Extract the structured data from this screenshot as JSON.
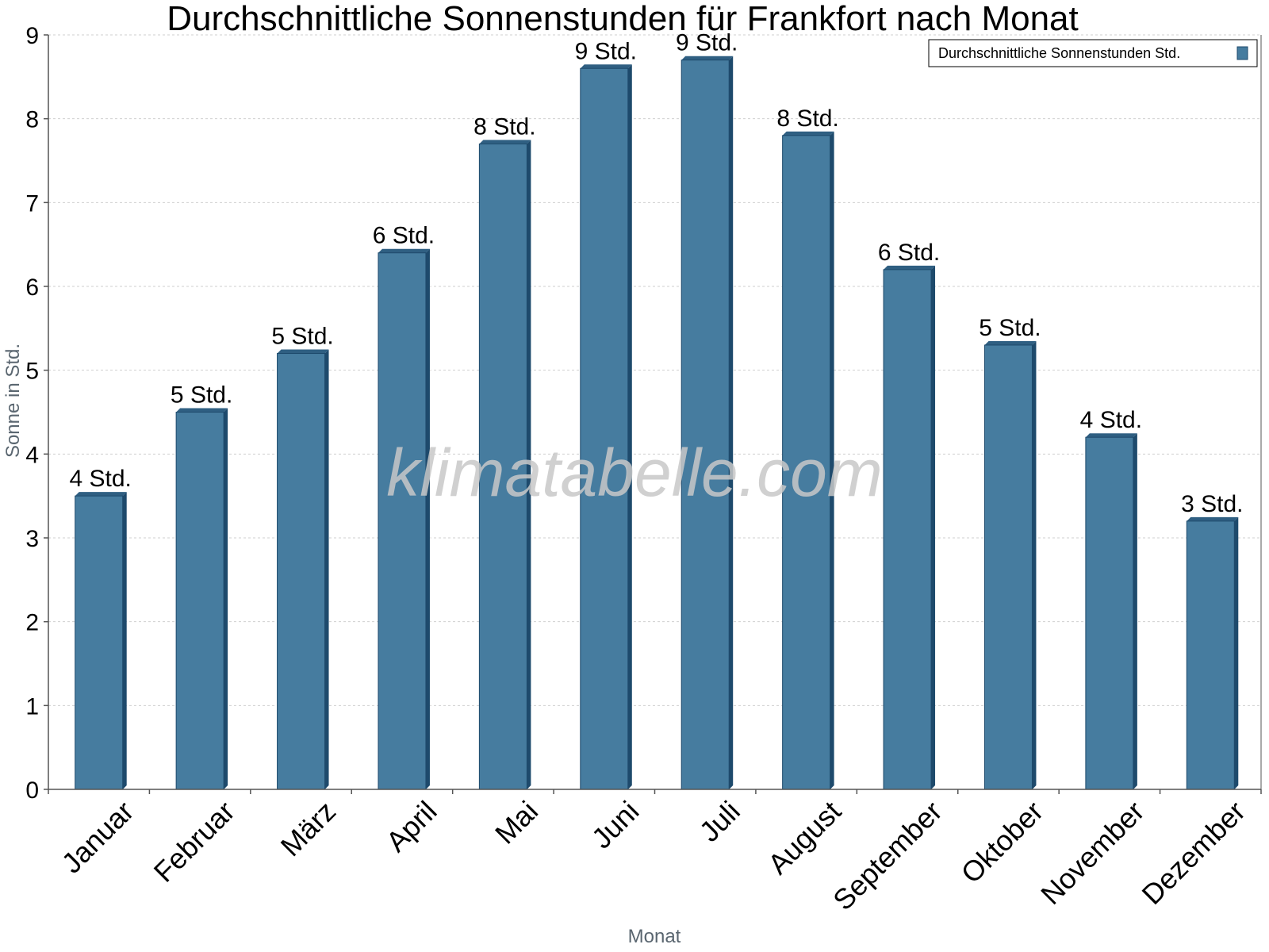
{
  "chart_data": {
    "type": "bar",
    "title": "Durchschnittliche Sonnenstunden für Frankfort nach Monat",
    "xlabel": "Monat",
    "ylabel": "Sonne in Std.",
    "categories": [
      "Januar",
      "Februar",
      "März",
      "April",
      "Mai",
      "Juni",
      "Juli",
      "August",
      "September",
      "Oktober",
      "November",
      "Dezember"
    ],
    "series": [
      {
        "name": "Durchschnittliche Sonnenstunden Std.",
        "values": [
          3.5,
          4.5,
          5.2,
          6.4,
          7.7,
          8.6,
          8.7,
          7.8,
          6.2,
          5.3,
          4.2,
          3.2
        ],
        "data_labels": [
          "4 Std.",
          "5 Std.",
          "5 Std.",
          "6 Std.",
          "8 Std.",
          "9 Std.",
          "9 Std.",
          "8 Std.",
          "6 Std.",
          "5 Std.",
          "4 Std.",
          "3 Std."
        ]
      }
    ],
    "ylim": [
      0,
      9
    ],
    "yticks": [
      "0",
      "1",
      "2",
      "3",
      "4",
      "5",
      "6",
      "7",
      "8",
      "9"
    ],
    "grid": true,
    "legend_position": "top-right",
    "watermark": "klimatabelle.com",
    "colors": {
      "bar_fill": "#467c9f",
      "bar_side": "#1e4a6c",
      "bar_top": "#2f5f82",
      "grid": "#cfcfcf",
      "axis": "#555555",
      "legend_swatch": "#467c9f"
    }
  }
}
